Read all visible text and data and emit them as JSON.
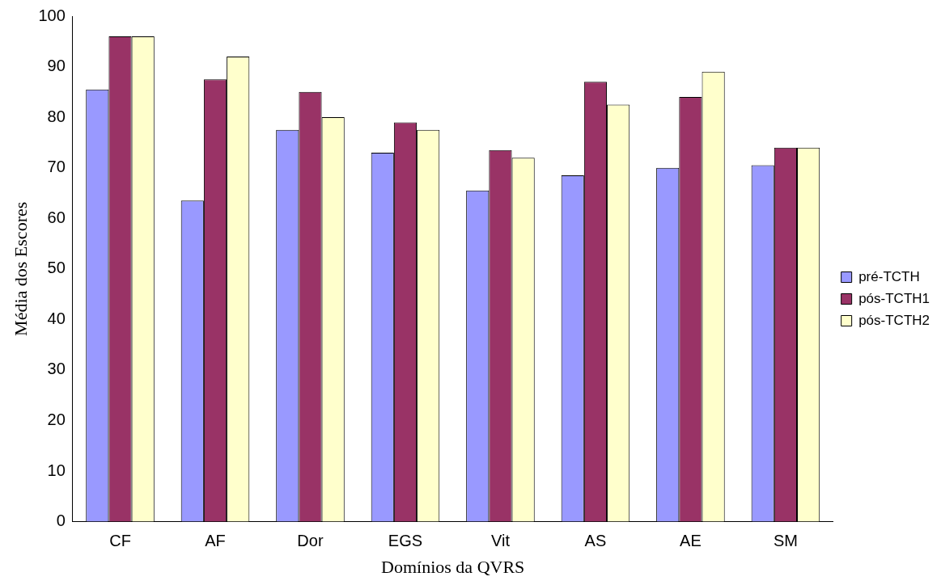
{
  "chart_data": {
    "type": "bar",
    "xlabel": "Domínios da QVRS",
    "ylabel": "Média dos Escores",
    "categories": [
      "CF",
      "AF",
      "Dor",
      "EGS",
      "Vit",
      "AS",
      "AE",
      "SM"
    ],
    "series": [
      {
        "name": "pré-TCTH",
        "color": "#9999ff",
        "values": [
          85.5,
          63.5,
          77.5,
          73,
          65.5,
          68.5,
          70,
          70.5
        ]
      },
      {
        "name": "pós-TCTH1",
        "color": "#993366",
        "values": [
          96,
          87.5,
          85,
          79,
          73.5,
          87,
          84,
          74
        ]
      },
      {
        "name": "pós-TCTH2",
        "color": "#ffffcc",
        "values": [
          96,
          92,
          80,
          77.5,
          72,
          82.5,
          89,
          74
        ]
      }
    ],
    "ylim": [
      0,
      100
    ],
    "yticks": [
      0,
      10,
      20,
      30,
      40,
      50,
      60,
      70,
      80,
      90,
      100
    ],
    "grid": false,
    "legend": "right"
  }
}
